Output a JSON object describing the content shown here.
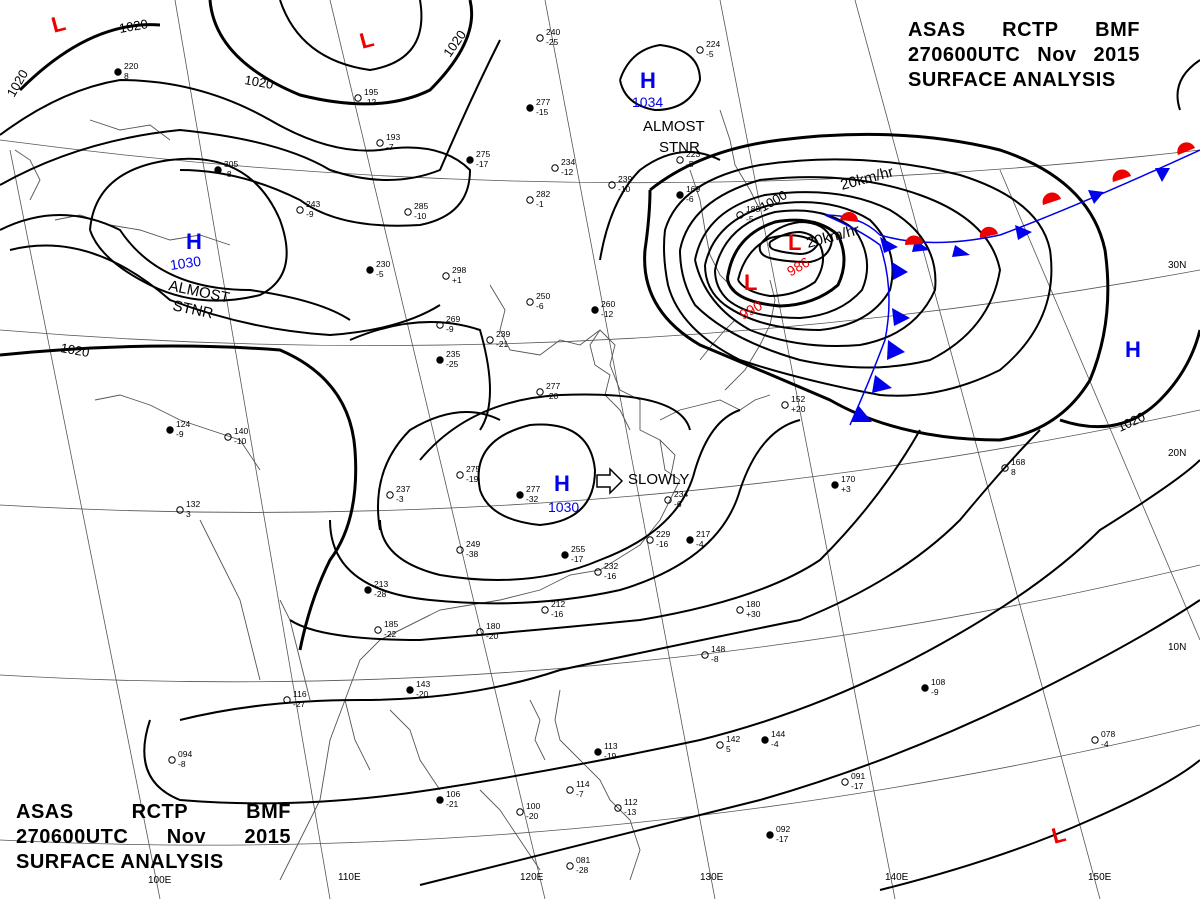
{
  "header": {
    "line1": [
      "ASAS",
      "RCTP",
      "BMF"
    ],
    "line2": [
      "270600UTC",
      "Nov",
      "2015"
    ],
    "line3": "SURFACE  ANALYSIS"
  },
  "colors": {
    "high": "#0000ee",
    "low": "#ee0000",
    "cold_front": "#0000ee",
    "warm_front": "#ee0000",
    "isobar": "#000000",
    "grid": "#444444",
    "coast": "#444444"
  },
  "isobar_labels": {
    "v1020": "1020",
    "v1000": "1000"
  },
  "pressure_centers": [
    {
      "type": "L",
      "value": ""
    },
    {
      "type": "L",
      "value": ""
    },
    {
      "type": "H",
      "value": "1034"
    },
    {
      "type": "H",
      "value": "1030"
    },
    {
      "type": "H",
      "value": "1030"
    },
    {
      "type": "L",
      "value": "990"
    },
    {
      "type": "L",
      "value": "986"
    },
    {
      "type": "H",
      "value": ""
    },
    {
      "type": "L",
      "value": ""
    }
  ],
  "annotations": {
    "almost": "ALMOST",
    "stnr": "STNR",
    "slowly": "SLOWLY",
    "speed": "20km/hr"
  },
  "geo_labels": {
    "lon_110": "110E",
    "lon_120": "120E",
    "lon_130": "130E",
    "lon_140": "140E",
    "lon_150": "150E",
    "lon_100": "100E",
    "lat_30": "30N",
    "lat_20": "20N",
    "lat_10": "10N"
  },
  "stations": [
    [
      "220",
      "8"
    ],
    [
      "195",
      "-12"
    ],
    [
      "240",
      "-25"
    ],
    [
      "277",
      "-15"
    ],
    [
      "224",
      "-5"
    ],
    [
      "234",
      "-12"
    ],
    [
      "305",
      "-8"
    ],
    [
      "243",
      "-9"
    ],
    [
      "285",
      "-10"
    ],
    [
      "275",
      "-17"
    ],
    [
      "282",
      "-1"
    ],
    [
      "239",
      "-10"
    ],
    [
      "230",
      "-5"
    ],
    [
      "298",
      "+1"
    ],
    [
      "250",
      "-6"
    ],
    [
      "260",
      "-12"
    ],
    [
      "269",
      "-9"
    ],
    [
      "239",
      "-21"
    ],
    [
      "235",
      "-25"
    ],
    [
      "277",
      "-20"
    ],
    [
      "152",
      "+20"
    ],
    [
      "170",
      "+3"
    ],
    [
      "168",
      "8"
    ],
    [
      "275",
      "-19"
    ],
    [
      "277",
      "-32"
    ],
    [
      "234",
      "-6"
    ],
    [
      "229",
      "-16"
    ],
    [
      "217",
      "-4"
    ],
    [
      "237",
      "-3"
    ],
    [
      "249",
      "-38"
    ],
    [
      "255",
      "-17"
    ],
    [
      "232",
      "-16"
    ],
    [
      "212",
      "-16"
    ],
    [
      "213",
      "-28"
    ],
    [
      "185",
      "-22"
    ],
    [
      "180",
      "-20"
    ],
    [
      "143",
      "-20"
    ],
    [
      "116",
      "-27"
    ],
    [
      "094",
      "-8"
    ],
    [
      "106",
      "-21"
    ],
    [
      "100",
      "-20"
    ],
    [
      "114",
      "-7"
    ],
    [
      "113",
      "-19"
    ],
    [
      "112",
      "-13"
    ],
    [
      "081",
      "-28"
    ],
    [
      "092",
      "-17"
    ],
    [
      "091",
      "-17"
    ],
    [
      "078",
      "-4"
    ],
    [
      "108",
      "-9"
    ],
    [
      "180",
      "+30"
    ],
    [
      "148",
      "-8"
    ],
    [
      "144",
      "-4"
    ],
    [
      "142",
      "5"
    ],
    [
      "132",
      "3"
    ],
    [
      "124",
      "-9"
    ],
    [
      "140",
      "-10"
    ],
    [
      "223",
      "-5"
    ],
    [
      "169",
      "-6"
    ],
    [
      "185",
      "-5"
    ],
    [
      "193",
      "-7"
    ]
  ]
}
